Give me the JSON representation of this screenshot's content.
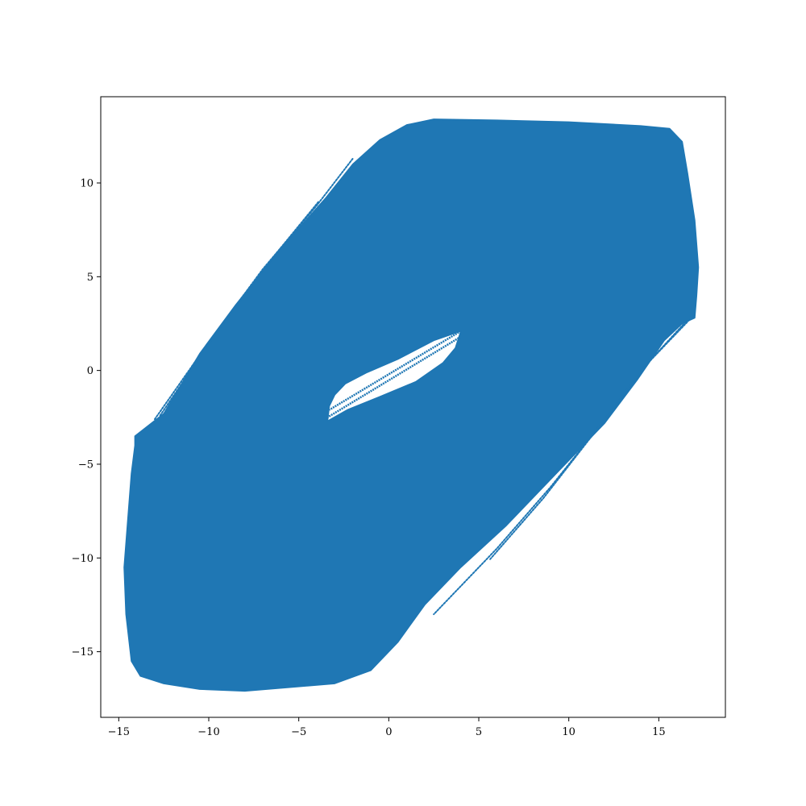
{
  "chart_data": {
    "type": "scatter",
    "title": "",
    "xlabel": "",
    "ylabel": "",
    "xlim": [
      -16.0,
      18.7
    ],
    "ylim": [
      -18.5,
      14.6
    ],
    "grid": false,
    "legend": "none",
    "series_color": "#1f77b4",
    "x_ticks": [
      {
        "value": -15,
        "label": "−15"
      },
      {
        "value": -10,
        "label": "−10"
      },
      {
        "value": -5,
        "label": "−5"
      },
      {
        "value": 0,
        "label": "0"
      },
      {
        "value": 5,
        "label": "5"
      },
      {
        "value": 10,
        "label": "10"
      },
      {
        "value": 15,
        "label": "15"
      }
    ],
    "y_ticks": [
      {
        "value": -15,
        "label": "−15"
      },
      {
        "value": -10,
        "label": "−10"
      },
      {
        "value": -5,
        "label": "−5"
      },
      {
        "value": 0,
        "label": "0"
      },
      {
        "value": 5,
        "label": "5"
      },
      {
        "value": 10,
        "label": "10"
      }
    ],
    "filled_region_outline": [
      [
        -14.1,
        -3.5
      ],
      [
        -12.5,
        -2.3
      ],
      [
        -10.5,
        0.9
      ],
      [
        -8.5,
        3.5
      ],
      [
        -6.0,
        6.5
      ],
      [
        -3.5,
        9.2
      ],
      [
        -2.0,
        11.0
      ],
      [
        -0.5,
        12.3
      ],
      [
        1.0,
        13.1
      ],
      [
        2.5,
        13.4
      ],
      [
        6.0,
        13.35
      ],
      [
        10.0,
        13.25
      ],
      [
        14.0,
        13.05
      ],
      [
        15.6,
        12.9
      ],
      [
        16.3,
        12.2
      ],
      [
        16.6,
        10.5
      ],
      [
        17.0,
        8.0
      ],
      [
        17.2,
        5.5
      ],
      [
        17.1,
        4.0
      ],
      [
        17.0,
        2.8
      ],
      [
        16.3,
        2.5
      ],
      [
        15.3,
        1.6
      ],
      [
        13.8,
        -0.5
      ],
      [
        12.0,
        -2.8
      ],
      [
        9.5,
        -5.3
      ],
      [
        6.5,
        -8.3
      ],
      [
        4.0,
        -10.5
      ],
      [
        2.0,
        -12.5
      ],
      [
        0.5,
        -14.5
      ],
      [
        -1.0,
        -16.0
      ],
      [
        -3.0,
        -16.7
      ],
      [
        -5.5,
        -16.9
      ],
      [
        -8.0,
        -17.1
      ],
      [
        -10.5,
        -17.0
      ],
      [
        -12.5,
        -16.7
      ],
      [
        -13.8,
        -16.3
      ],
      [
        -14.3,
        -15.5
      ],
      [
        -14.6,
        -13.0
      ],
      [
        -14.7,
        -10.5
      ],
      [
        -14.5,
        -8.0
      ],
      [
        -14.3,
        -5.5
      ],
      [
        -14.1,
        -4.0
      ]
    ],
    "hole_outline": [
      [
        4.0,
        2.1
      ],
      [
        2.5,
        1.6
      ],
      [
        0.5,
        0.6
      ],
      [
        -1.2,
        -0.1
      ],
      [
        -2.4,
        -0.7
      ],
      [
        -3.0,
        -1.3
      ],
      [
        -3.3,
        -1.9
      ],
      [
        -3.4,
        -2.7
      ],
      [
        -2.3,
        -2.1
      ],
      [
        -0.5,
        -1.4
      ],
      [
        1.5,
        -0.6
      ],
      [
        3.0,
        0.4
      ],
      [
        3.7,
        1.2
      ]
    ],
    "hole_trajectory_lines": [
      [
        [
          4.0,
          2.1
        ],
        [
          -3.3,
          -2.1
        ]
      ],
      [
        [
          4.0,
          1.8
        ],
        [
          -3.4,
          -2.5
        ]
      ]
    ],
    "outer_trajectory_curves": [
      [
        [
          -13.0,
          -2.6
        ],
        [
          -10.0,
          1.5
        ],
        [
          -7.0,
          5.4
        ],
        [
          -4.0,
          8.8
        ],
        [
          -2.0,
          11.3
        ]
      ],
      [
        [
          -12.7,
          -2.4
        ],
        [
          -9.8,
          1.7
        ],
        [
          -6.8,
          5.6
        ],
        [
          -3.9,
          9.0
        ]
      ],
      [
        [
          16.7,
          2.7
        ],
        [
          14.5,
          0.5
        ],
        [
          12.0,
          -2.6
        ],
        [
          9.0,
          -6.2
        ],
        [
          6.0,
          -9.5
        ],
        [
          2.5,
          -13.0
        ]
      ],
      [
        [
          16.5,
          2.6
        ],
        [
          14.2,
          0.2
        ],
        [
          11.6,
          -3.1
        ],
        [
          8.6,
          -6.8
        ],
        [
          5.6,
          -10.1
        ]
      ]
    ]
  }
}
